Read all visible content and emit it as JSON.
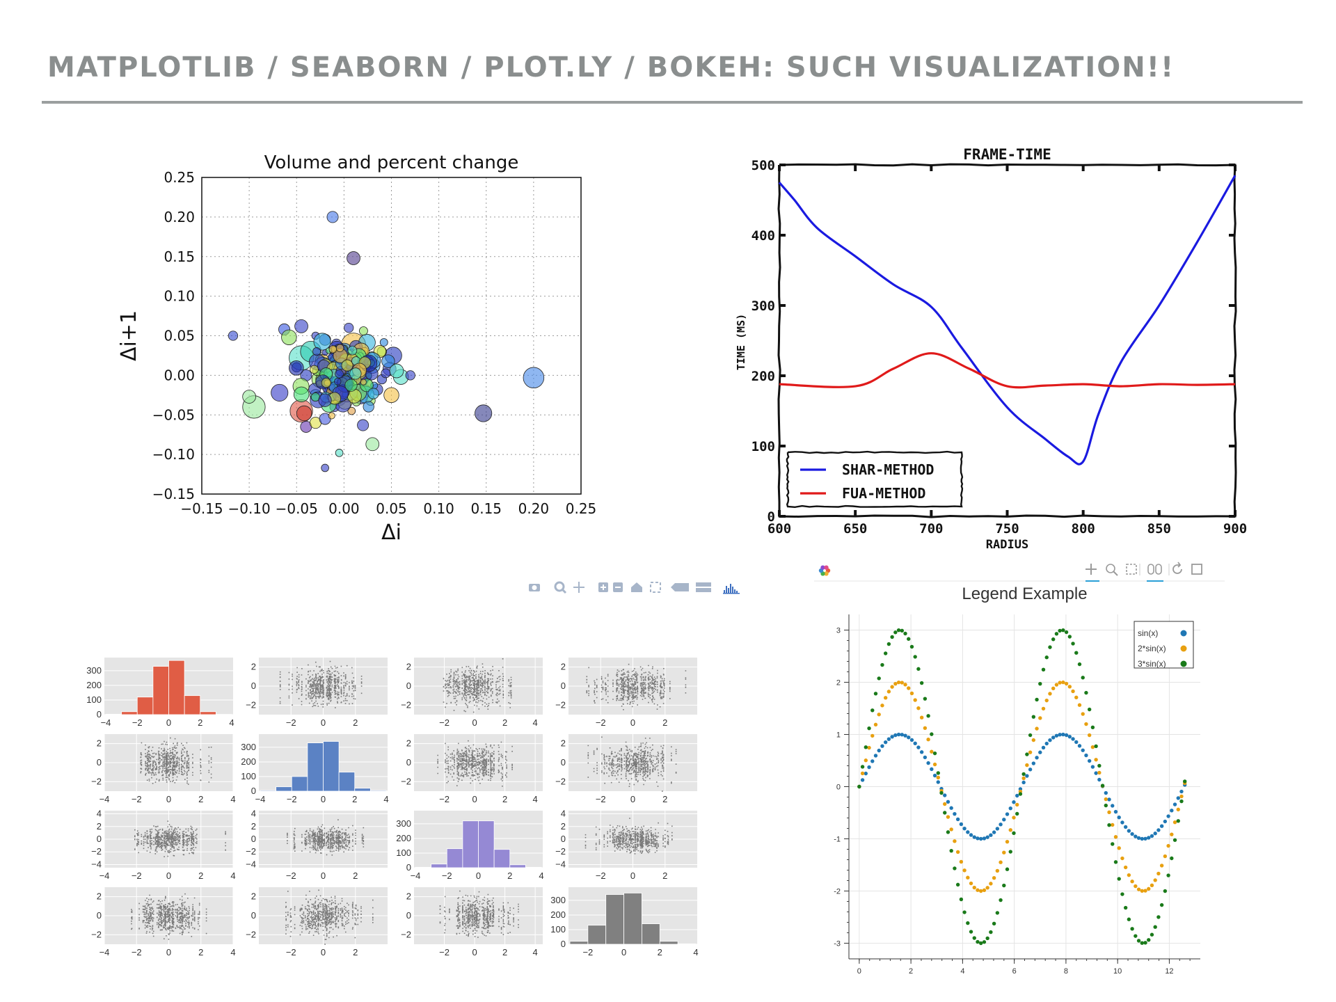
{
  "slide": {
    "title": "MATPLOTLIB / SEABORN / PLOT.LY / BOKEH: SUCH VISUALIZATION!!"
  },
  "chart_data": [
    {
      "id": "volume-scatter",
      "type": "scatter",
      "title": "Volume and percent change",
      "xlabel": "Δi",
      "ylabel": "Δi+1",
      "xlim": [
        -0.15,
        0.25
      ],
      "ylim": [
        -0.15,
        0.25
      ],
      "xticks": [
        -0.15,
        -0.1,
        -0.05,
        0.0,
        0.05,
        0.1,
        0.15,
        0.2,
        0.25
      ],
      "yticks": [
        -0.15,
        -0.1,
        -0.05,
        0.0,
        0.05,
        0.1,
        0.15,
        0.2,
        0.25
      ],
      "xtick_labels": [
        "−0.15",
        "−0.10",
        "−0.05",
        "0.00",
        "0.05",
        "0.10",
        "0.15",
        "0.20",
        "0.25"
      ],
      "ytick_labels": [
        "−0.15",
        "−0.10",
        "−0.05",
        "0.00",
        "0.05",
        "0.10",
        "0.15",
        "0.20",
        "0.25"
      ],
      "grid": true,
      "points": [
        {
          "x": -0.012,
          "y": 0.2,
          "s": 6,
          "c": "#4a7be8"
        },
        {
          "x": 0.01,
          "y": 0.148,
          "s": 7,
          "c": "#55418f"
        },
        {
          "x": -0.117,
          "y": 0.05,
          "s": 5,
          "c": "#3a4fd0"
        },
        {
          "x": -0.063,
          "y": 0.058,
          "s": 6,
          "c": "#3b5be0"
        },
        {
          "x": -0.045,
          "y": 0.062,
          "s": 7,
          "c": "#3a46c8"
        },
        {
          "x": 0.005,
          "y": 0.06,
          "s": 5,
          "c": "#3a46c8"
        },
        {
          "x": 0.01,
          "y": 0.038,
          "s": 13,
          "c": "#f3c248"
        },
        {
          "x": -0.058,
          "y": 0.048,
          "s": 8,
          "c": "#8ee05e"
        },
        {
          "x": -0.045,
          "y": 0.022,
          "s": 13,
          "c": "#5be0c9"
        },
        {
          "x": -0.035,
          "y": 0.03,
          "s": 11,
          "c": "#2ec9b2"
        },
        {
          "x": -0.02,
          "y": 0.045,
          "s": 6,
          "c": "#3a46c8"
        },
        {
          "x": 0.0,
          "y": 0.03,
          "s": 9,
          "c": "#2e8be0"
        },
        {
          "x": -0.01,
          "y": 0.015,
          "s": 10,
          "c": "#3ab7e0"
        },
        {
          "x": 0.015,
          "y": 0.01,
          "s": 9,
          "c": "#2a3ec0"
        },
        {
          "x": 0.03,
          "y": 0.012,
          "s": 8,
          "c": "#3f9ae3"
        },
        {
          "x": 0.052,
          "y": 0.025,
          "s": 9,
          "c": "#2a3ec0"
        },
        {
          "x": 0.048,
          "y": 0.008,
          "s": 7,
          "c": "#3a46c8"
        },
        {
          "x": 0.06,
          "y": -0.002,
          "s": 8,
          "c": "#5be0c9"
        },
        {
          "x": 0.07,
          "y": 0.0,
          "s": 5,
          "c": "#3a46c8"
        },
        {
          "x": 0.05,
          "y": -0.025,
          "s": 8,
          "c": "#f3c248"
        },
        {
          "x": 0.035,
          "y": -0.018,
          "s": 6,
          "c": "#2a3ec0"
        },
        {
          "x": -0.025,
          "y": -0.005,
          "s": 9,
          "c": "#8ee05e"
        },
        {
          "x": -0.04,
          "y": 0.0,
          "s": 6,
          "c": "#2a3ec0"
        },
        {
          "x": -0.015,
          "y": -0.01,
          "s": 8,
          "c": "#2e8be0"
        },
        {
          "x": 0.0,
          "y": -0.005,
          "s": 10,
          "c": "#1f2fb0"
        },
        {
          "x": 0.012,
          "y": -0.012,
          "s": 9,
          "c": "#4be07a"
        },
        {
          "x": 0.022,
          "y": -0.02,
          "s": 7,
          "c": "#2a3ec0"
        },
        {
          "x": -0.005,
          "y": -0.03,
          "s": 7,
          "c": "#3a46c8"
        },
        {
          "x": -0.03,
          "y": -0.025,
          "s": 6,
          "c": "#4ad0e0"
        },
        {
          "x": 0.005,
          "y": 0.005,
          "s": 6,
          "c": "#d8e04a"
        },
        {
          "x": 0.02,
          "y": 0.025,
          "s": 6,
          "c": "#4be07a"
        },
        {
          "x": -0.02,
          "y": 0.01,
          "s": 5,
          "c": "#e04a3a"
        },
        {
          "x": -0.068,
          "y": -0.022,
          "s": 9,
          "c": "#3a3fc8"
        },
        {
          "x": -0.095,
          "y": -0.04,
          "s": 12,
          "c": "#9be89e"
        },
        {
          "x": -0.1,
          "y": -0.027,
          "s": 7,
          "c": "#9be89e"
        },
        {
          "x": -0.045,
          "y": -0.045,
          "s": 12,
          "c": "#e05a4a"
        },
        {
          "x": -0.042,
          "y": -0.048,
          "s": 8,
          "c": "#cc3a2f"
        },
        {
          "x": -0.04,
          "y": -0.065,
          "s": 6,
          "c": "#6a3ab0"
        },
        {
          "x": -0.03,
          "y": -0.06,
          "s": 6,
          "c": "#e0e04a"
        },
        {
          "x": -0.02,
          "y": -0.055,
          "s": 6,
          "c": "#4a5fe0"
        },
        {
          "x": 0.02,
          "y": -0.063,
          "s": 6,
          "c": "#3a46c8"
        },
        {
          "x": 0.03,
          "y": -0.087,
          "s": 7,
          "c": "#9be89e"
        },
        {
          "x": -0.005,
          "y": -0.098,
          "s": 4,
          "c": "#5be0c9"
        },
        {
          "x": -0.02,
          "y": -0.117,
          "s": 4,
          "c": "#3a46c8"
        },
        {
          "x": 0.147,
          "y": -0.048,
          "s": 9,
          "c": "#3a3f8f"
        },
        {
          "x": 0.2,
          "y": -0.003,
          "s": 11,
          "c": "#4a8be8"
        },
        {
          "x": -0.008,
          "y": 0.04,
          "s": 5,
          "c": "#3a46c8"
        },
        {
          "x": 0.04,
          "y": 0.03,
          "s": 5,
          "c": "#8ee05e"
        },
        {
          "x": -0.05,
          "y": 0.01,
          "s": 5,
          "c": "#3a46c8"
        },
        {
          "x": 0.028,
          "y": -0.032,
          "s": 5,
          "c": "#8ee05e"
        },
        {
          "x": -0.01,
          "y": -0.04,
          "s": 5,
          "c": "#3a46c8"
        },
        {
          "x": 0.008,
          "y": -0.045,
          "s": 4,
          "c": "#e0a04a"
        },
        {
          "x": 0.04,
          "y": -0.005,
          "s": 5,
          "c": "#2a3ec0"
        },
        {
          "x": -0.03,
          "y": 0.05,
          "s": 4,
          "c": "#3a46c8"
        },
        {
          "x": 0.005,
          "y": 0.02,
          "s": 5,
          "c": "#2a3ec0"
        },
        {
          "x": -0.025,
          "y": 0.02,
          "s": 5,
          "c": "#4be07a"
        },
        {
          "x": 0.018,
          "y": 0.0,
          "s": 6,
          "c": "#2a3ec0"
        },
        {
          "x": -0.012,
          "y": -0.02,
          "s": 5,
          "c": "#3ab7e0"
        }
      ]
    },
    {
      "id": "frame-time",
      "type": "line",
      "title": "FRAME-TIME",
      "xlabel": "RADIUS",
      "ylabel": "TIME (MS)",
      "xlim": [
        600,
        900
      ],
      "ylim": [
        0,
        500
      ],
      "xticks": [
        600,
        650,
        700,
        750,
        800,
        850,
        900
      ],
      "yticks": [
        0,
        100,
        200,
        300,
        400,
        500
      ],
      "legend": "bottom-left",
      "series": [
        {
          "name": "SHAR-METHOD",
          "color": "#1a1ae0",
          "x": [
            600,
            610,
            625,
            650,
            675,
            700,
            720,
            750,
            775,
            790,
            800,
            810,
            825,
            850,
            875,
            900
          ],
          "y": [
            475,
            450,
            410,
            370,
            330,
            298,
            240,
            155,
            110,
            85,
            78,
            145,
            220,
            300,
            390,
            485
          ]
        },
        {
          "name": "FUA-METHOD",
          "color": "#e01a1a",
          "x": [
            600,
            650,
            675,
            700,
            725,
            750,
            775,
            800,
            825,
            850,
            875,
            900
          ],
          "y": [
            188,
            185,
            210,
            232,
            210,
            185,
            186,
            188,
            185,
            188,
            187,
            188
          ]
        }
      ]
    },
    {
      "id": "pairplot",
      "type": "scatter",
      "grid": true,
      "rows": [
        {
          "xticks": [
            -4,
            -2,
            0,
            2,
            4
          ],
          "xtick_labels": [
            "−4",
            "−2",
            "0",
            "2",
            "4"
          ],
          "hist_xlim": [
            -4,
            4
          ]
        },
        {
          "xticks": [
            -2,
            0,
            2
          ],
          "xtick_labels": [
            "−2",
            "0",
            "2"
          ],
          "hist_xlim": [
            -4,
            4
          ],
          "hist_xticks": [
            -4,
            -2,
            0,
            2,
            4
          ],
          "hist_xtick_labels": [
            "−4",
            "−2",
            "0",
            "2",
            "4"
          ]
        },
        {
          "xticks": [
            -2,
            0,
            2
          ],
          "xtick_labels": [
            "−2",
            "0",
            "2"
          ],
          "hist_xlim": [
            -4,
            4
          ],
          "hist_xticks": [
            -4,
            -2,
            0,
            2,
            4
          ],
          "hist_xtick_labels": [
            "−4",
            "−2",
            "0",
            "2",
            "4"
          ]
        },
        {
          "xticks": [
            -2,
            0,
            2
          ],
          "xtick_labels": [
            "−2",
            "0",
            "2"
          ],
          "hist_xlim": [
            -3,
            4
          ],
          "hist_xticks": [
            -2,
            0,
            2,
            4
          ],
          "hist_xtick_labels": [
            "−2",
            "0",
            "2",
            "4"
          ]
        }
      ],
      "col_xticks": [
        {
          "ticks": [
            -4,
            -2,
            0,
            2,
            4
          ],
          "labels": [
            "−4",
            "−2",
            "0",
            "2",
            "4"
          ],
          "xlim": [
            -4,
            4
          ]
        },
        {
          "ticks": [
            -2,
            0,
            2
          ],
          "labels": [
            "−2",
            "0",
            "2"
          ],
          "xlim": [
            -4,
            4
          ]
        },
        {
          "ticks": [
            -2,
            0,
            2,
            4
          ],
          "labels": [
            "−2",
            "0",
            "2",
            "4"
          ],
          "xlim": [
            -4,
            4.5
          ]
        },
        {
          "ticks": [
            -2,
            0,
            2
          ],
          "labels": [
            "−2",
            "0",
            "2"
          ],
          "xlim": [
            -4,
            4
          ]
        }
      ],
      "scatter_yticks": [
        {
          "ticks": [
            -2,
            0,
            2
          ],
          "labels": [
            "−2",
            "0",
            "2"
          ],
          "ylim": [
            -3,
            3
          ]
        },
        {
          "ticks": [
            -2,
            0,
            2
          ],
          "labels": [
            "−2",
            "0",
            "2"
          ],
          "ylim": [
            -3,
            3
          ]
        },
        {
          "ticks": [
            -4,
            -2,
            0,
            2,
            4
          ],
          "labels": [
            "−4",
            "−2",
            "0",
            "2",
            "4"
          ],
          "ylim": [
            -4.5,
            4.5
          ]
        },
        {
          "ticks": [
            -2,
            0,
            2
          ],
          "labels": [
            "−2",
            "0",
            "2"
          ],
          "ylim": [
            -3,
            3
          ]
        }
      ],
      "hist_yticks": [
        0,
        100,
        200,
        300
      ],
      "hist_ylim": [
        0,
        390
      ],
      "hists": [
        {
          "color": "#e05d45",
          "bin_edges": [
            -4,
            -3,
            -2,
            -1,
            0,
            1,
            2,
            3,
            4
          ],
          "counts": [
            3,
            20,
            120,
            330,
            370,
            130,
            20,
            2
          ]
        },
        {
          "color": "#5b82c4",
          "bin_edges": [
            -4,
            -3,
            -2,
            -1,
            0,
            1,
            2,
            3,
            4
          ],
          "counts": [
            5,
            30,
            100,
            330,
            340,
            130,
            20,
            5
          ]
        },
        {
          "color": "#9589d4",
          "bin_edges": [
            -4,
            -3,
            -2,
            -1,
            0,
            1,
            2,
            3,
            4
          ],
          "counts": [
            3,
            25,
            130,
            320,
            320,
            125,
            20,
            3
          ]
        },
        {
          "color": "#808080",
          "bin_edges": [
            -3,
            -2,
            -1,
            0,
            1,
            2,
            3,
            4
          ],
          "counts": [
            20,
            130,
            340,
            350,
            140,
            20,
            3
          ]
        }
      ],
      "scatter_color": "#666666",
      "points_per_panel": 700
    },
    {
      "id": "legend-example",
      "type": "scatter",
      "title": "Legend Example",
      "xlim": [
        -0.4,
        13.2
      ],
      "ylim": [
        -3.3,
        3.3
      ],
      "xticks": [
        0,
        2,
        4,
        6,
        8,
        10,
        12
      ],
      "yticks": [
        -3,
        -2,
        -1,
        0,
        1,
        2,
        3
      ],
      "xtick_labels": [
        "0",
        "2",
        "4",
        "6",
        "8",
        "10",
        "12"
      ],
      "ytick_labels": [
        "-3",
        "-2",
        "-1",
        "0",
        "1",
        "2",
        "3"
      ],
      "legend": "top-right",
      "grid": true,
      "x_range": [
        0,
        12.6
      ],
      "n_points": 100,
      "series": [
        {
          "name": "sin(x)",
          "amplitude": 1,
          "color": "#1f77b4"
        },
        {
          "name": "2*sin(x)",
          "amplitude": 2,
          "color": "#e8a010"
        },
        {
          "name": "3*sin(x)",
          "amplitude": 3,
          "color": "#1a7a1a"
        }
      ]
    }
  ],
  "plotly_toolbar": {
    "icons": [
      "camera-icon",
      "zoom-icon",
      "pan-icon",
      "zoom-in-icon",
      "zoom-out-icon",
      "home-icon",
      "autoscale-icon",
      "hover-closest-icon",
      "hover-compare-icon",
      "plotly-logo-icon"
    ],
    "color": "#a7b5c9",
    "accent": "#3d6fc0"
  },
  "bokeh_toolbar": {
    "icons": [
      "bokeh-logo-icon",
      "pan-tool-icon",
      "box-zoom-tool-icon",
      "box-select-tool-icon",
      "wheel-zoom-tool-icon",
      "reset-tool-icon",
      "save-tool-icon"
    ]
  }
}
